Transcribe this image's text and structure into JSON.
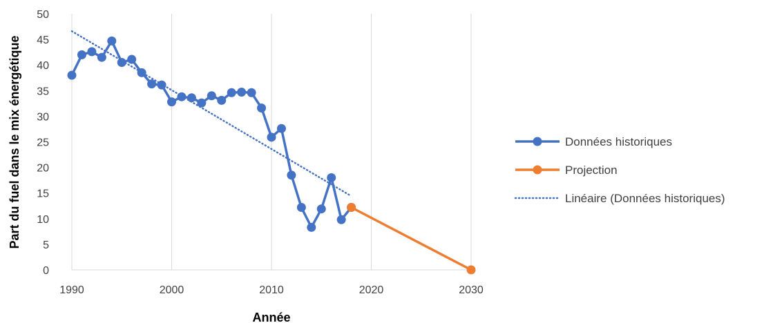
{
  "chart_data": {
    "type": "line",
    "xlabel": "Année",
    "ylabel": "Part du fuel dans le mix énergétique",
    "xlim": [
      1990,
      2030
    ],
    "ylim": [
      0,
      50
    ],
    "x_ticks": [
      1990,
      2000,
      2010,
      2020,
      2030
    ],
    "y_ticks": [
      0,
      5,
      10,
      15,
      20,
      25,
      30,
      35,
      40,
      45,
      50
    ],
    "grid": "vertical",
    "legend_position": "right",
    "series": [
      {
        "name": "Données historiques",
        "color": "#4472C4",
        "style": "line-markers",
        "x": [
          1990,
          1991,
          1992,
          1993,
          1994,
          1995,
          1996,
          1997,
          1998,
          1999,
          2000,
          2001,
          2002,
          2003,
          2004,
          2005,
          2006,
          2007,
          2008,
          2009,
          2010,
          2011,
          2012,
          2013,
          2014,
          2015,
          2016,
          2017,
          2018
        ],
        "y": [
          38,
          42,
          42.6,
          41.5,
          44.7,
          40.5,
          41.1,
          38.5,
          36.3,
          36.1,
          32.8,
          33.8,
          33.6,
          32.6,
          34,
          33.1,
          34.6,
          34.7,
          34.6,
          31.6,
          25.9,
          27.6,
          18.5,
          12.2,
          8.3,
          11.9,
          18,
          9.8,
          12.2
        ]
      },
      {
        "name": "Projection",
        "color": "#ED7D31",
        "style": "line-markers",
        "x": [
          2018,
          2030
        ],
        "y": [
          12.2,
          0
        ]
      },
      {
        "name": "Linéaire (Données historiques)",
        "color": "#4472C4",
        "style": "dotted",
        "x": [
          1990,
          2018
        ],
        "y": [
          46.6,
          14.4
        ]
      }
    ]
  }
}
